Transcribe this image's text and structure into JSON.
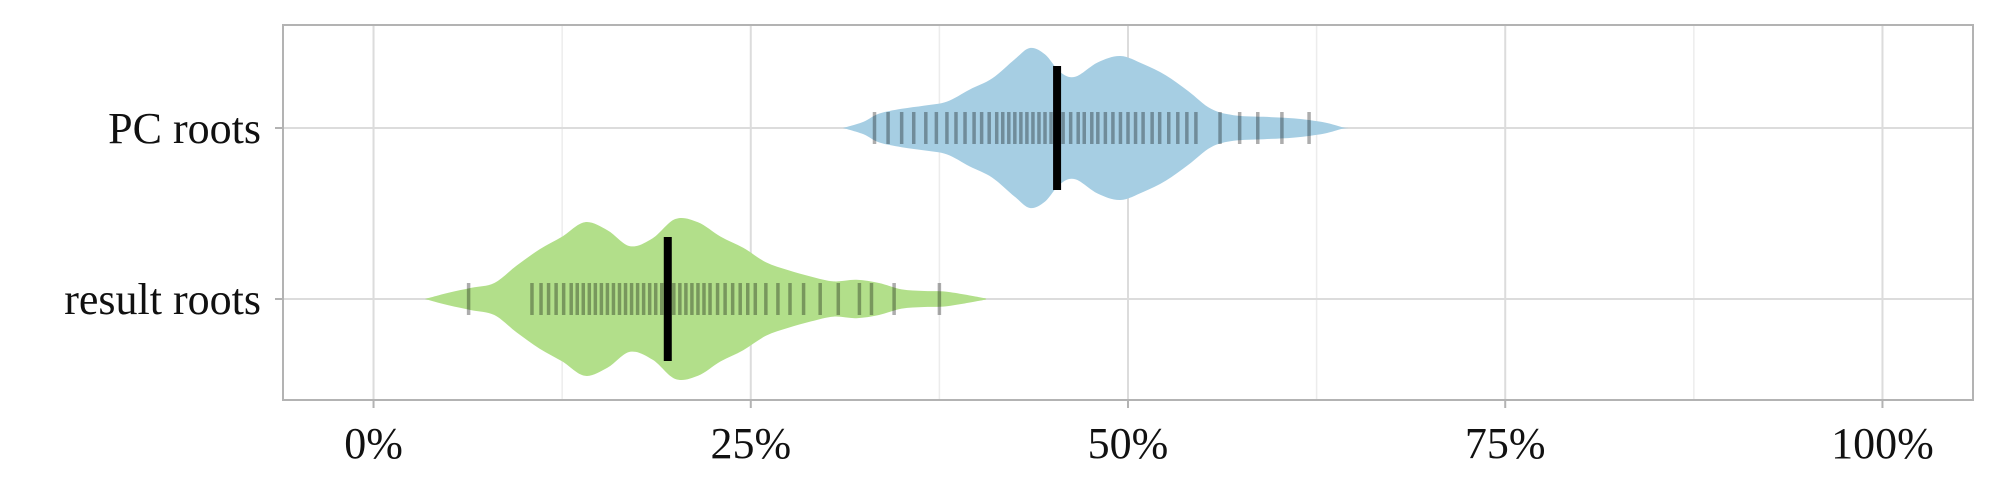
{
  "chart_data": {
    "type": "violin",
    "orientation": "horizontal",
    "x_format": "percent",
    "xlim": [
      -6,
      106
    ],
    "x_ticks": [
      0,
      25,
      50,
      75,
      100
    ],
    "x_tick_labels": [
      "0%",
      "25%",
      "50%",
      "75%",
      "100%"
    ],
    "minor_grid": [
      12.5,
      37.5,
      62.5,
      87.5
    ],
    "grid": true,
    "categories": [
      "PC roots",
      "result roots"
    ],
    "series": [
      {
        "category": "PC roots",
        "color": "#a6cee3",
        "median": 45.3,
        "range": [
          31.5,
          64.2
        ],
        "density_profile": [
          [
            31.5,
            0.02
          ],
          [
            32.5,
            0.08
          ],
          [
            33.5,
            0.18
          ],
          [
            35.0,
            0.24
          ],
          [
            36.5,
            0.28
          ],
          [
            38.0,
            0.33
          ],
          [
            39.5,
            0.48
          ],
          [
            41.0,
            0.62
          ],
          [
            42.5,
            0.86
          ],
          [
            43.5,
            1.0
          ],
          [
            44.5,
            0.92
          ],
          [
            45.5,
            0.7
          ],
          [
            46.5,
            0.64
          ],
          [
            48.0,
            0.82
          ],
          [
            49.5,
            0.9
          ],
          [
            51.0,
            0.8
          ],
          [
            52.5,
            0.66
          ],
          [
            54.0,
            0.46
          ],
          [
            55.5,
            0.24
          ],
          [
            57.0,
            0.16
          ],
          [
            59.0,
            0.14
          ],
          [
            61.0,
            0.12
          ],
          [
            63.0,
            0.07
          ],
          [
            64.2,
            0.01
          ]
        ],
        "observations": [
          33.2,
          34.1,
          35.0,
          35.8,
          36.6,
          37.3,
          38.0,
          38.6,
          39.2,
          39.8,
          40.3,
          40.8,
          41.3,
          41.7,
          42.1,
          42.5,
          42.9,
          43.3,
          43.7,
          44.1,
          44.5,
          44.9,
          45.3,
          45.7,
          46.2,
          46.7,
          47.1,
          47.6,
          48.0,
          48.5,
          49.0,
          49.5,
          50.0,
          50.5,
          51.0,
          51.6,
          52.1,
          52.7,
          53.3,
          53.9,
          54.5,
          56.1,
          57.4,
          58.6,
          60.2,
          62.0
        ]
      },
      {
        "category": "result roots",
        "color": "#b2df8a",
        "median": 19.5,
        "range": [
          3.8,
          40.2
        ],
        "density_profile": [
          [
            3.8,
            0.02
          ],
          [
            5.0,
            0.08
          ],
          [
            6.5,
            0.14
          ],
          [
            8.0,
            0.2
          ],
          [
            9.5,
            0.42
          ],
          [
            11.0,
            0.62
          ],
          [
            12.5,
            0.78
          ],
          [
            14.0,
            0.96
          ],
          [
            15.5,
            0.86
          ],
          [
            17.0,
            0.66
          ],
          [
            18.5,
            0.76
          ],
          [
            20.0,
            1.0
          ],
          [
            21.5,
            0.96
          ],
          [
            23.0,
            0.78
          ],
          [
            24.5,
            0.64
          ],
          [
            26.0,
            0.46
          ],
          [
            27.5,
            0.36
          ],
          [
            29.0,
            0.28
          ],
          [
            30.5,
            0.22
          ],
          [
            32.0,
            0.24
          ],
          [
            33.5,
            0.2
          ],
          [
            35.0,
            0.12
          ],
          [
            36.5,
            0.1
          ],
          [
            38.0,
            0.09
          ],
          [
            40.2,
            0.02
          ]
        ],
        "observations": [
          6.3,
          10.5,
          11.1,
          11.6,
          12.1,
          12.6,
          13.1,
          13.5,
          13.9,
          14.3,
          14.7,
          15.1,
          15.5,
          15.9,
          16.3,
          16.7,
          17.1,
          17.5,
          17.9,
          18.3,
          18.7,
          19.1,
          19.5,
          19.9,
          20.3,
          20.7,
          21.1,
          21.5,
          21.9,
          22.3,
          22.8,
          23.3,
          23.8,
          24.3,
          24.8,
          25.3,
          26.0,
          26.8,
          27.6,
          28.5,
          29.6,
          30.8,
          32.2,
          33.0,
          34.5,
          37.5
        ]
      }
    ]
  }
}
